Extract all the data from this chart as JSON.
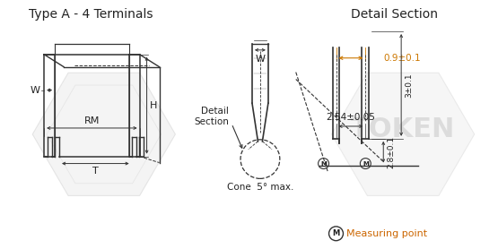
{
  "title_left": "Type A - 4 Terminals",
  "title_right": "Detail Section",
  "text_color": "#222222",
  "dim_color_orange": "#cc7700",
  "line_color": "#333333",
  "dim_09": "0.9±0.1",
  "dim_28": "2.8±0.1",
  "dim_3": "3±0.1",
  "dim_254": "2.54±0.05",
  "dim_cone": "Cone  5° max.",
  "label_detail": "Detail\nSection",
  "measuring_label": "Measuring point"
}
